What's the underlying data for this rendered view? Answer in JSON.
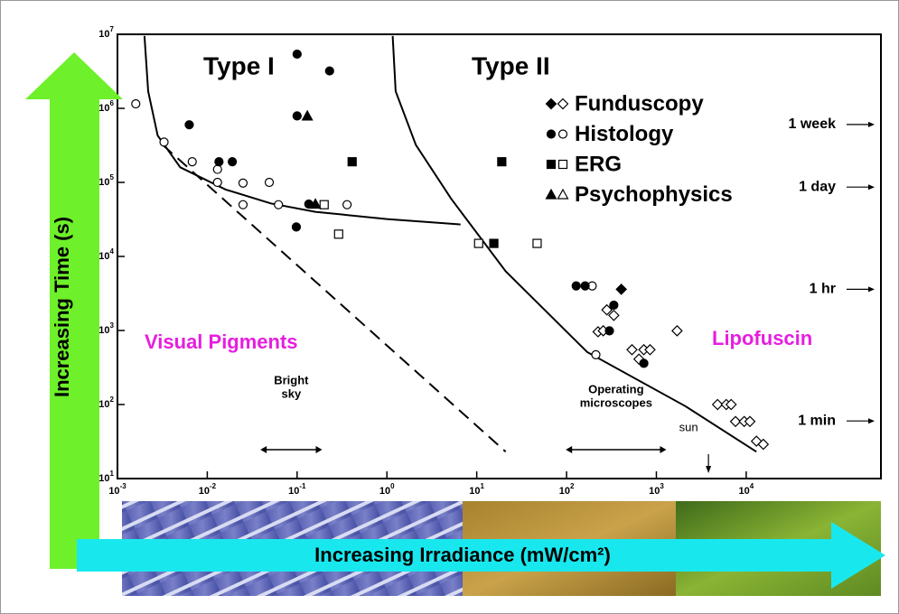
{
  "chart_data": {
    "type": "scatter",
    "xscale": "log",
    "yscale": "log",
    "xlim": [
      0.001,
      316228
    ],
    "ylim": [
      10,
      10000000
    ],
    "xticks": [
      {
        "value": 0.001,
        "label": "10",
        "exponent": "-3"
      },
      {
        "value": 0.01,
        "label": "10",
        "exponent": "-2"
      },
      {
        "value": 0.1,
        "label": "10",
        "exponent": "-1"
      },
      {
        "value": 1,
        "label": "10",
        "exponent": "0"
      },
      {
        "value": 10,
        "label": "10",
        "exponent": "1"
      },
      {
        "value": 100,
        "label": "10",
        "exponent": "2"
      },
      {
        "value": 1000,
        "label": "10",
        "exponent": "3"
      },
      {
        "value": 10000,
        "label": "10",
        "exponent": "4"
      }
    ],
    "yticks": [
      {
        "value": 10,
        "label": "10",
        "exponent": "1"
      },
      {
        "value": 100,
        "label": "10",
        "exponent": "2"
      },
      {
        "value": 1000,
        "label": "10",
        "exponent": "3"
      },
      {
        "value": 10000,
        "label": "10",
        "exponent": "4"
      },
      {
        "value": 100000,
        "label": "10",
        "exponent": "5"
      },
      {
        "value": 1000000,
        "label": "10",
        "exponent": "6"
      },
      {
        "value": 10000000,
        "label": "10",
        "exponent": "7"
      }
    ],
    "x_label": "Increasing Irradiance (mW/cm²)",
    "y_label": "Increasing Time (s)",
    "series": [
      {
        "name": "Funduscopy",
        "marker": "diamond",
        "color": "#000000",
        "filled": {
          "x": [
            407
          ],
          "values": [
            3600
          ]
        },
        "open": {
          "x": [
            281,
            336,
            224,
            256,
            535,
            725,
            850,
            640,
            1700,
            4800,
            6000,
            6800,
            7600,
            9500,
            11000,
            13000,
            15500
          ],
          "values": [
            1900,
            1600,
            960,
            990,
            550,
            550,
            550,
            410,
            990,
            100,
            100,
            100,
            59,
            59,
            59,
            32,
            29
          ]
        }
      },
      {
        "name": "Histology",
        "marker": "circle",
        "color": "#000000",
        "filled": {
          "x": [
            0.1,
            0.23,
            0.0063,
            0.0135,
            0.019,
            0.1,
            0.098,
            0.135,
            128,
            161,
            336,
            300,
            725
          ],
          "values": [
            5400000,
            3200000,
            600000,
            190000,
            190000,
            790000,
            25000,
            51000,
            4000,
            4000,
            2200,
            990,
            360
          ]
        },
        "open": {
          "x": [
            0.0016,
            0.0033,
            0.0068,
            0.013,
            0.013,
            0.025,
            0.049,
            0.025,
            0.062,
            0.36,
            193,
            212
          ],
          "values": [
            1150000,
            350000,
            190000,
            150000,
            100000,
            98000,
            100000,
            50000,
            50000,
            50000,
            4000,
            470
          ]
        }
      },
      {
        "name": "ERG",
        "marker": "square",
        "color": "#000000",
        "filled": {
          "x": [
            0.41,
            19,
            15.5
          ],
          "values": [
            190000,
            190000,
            15000
          ]
        },
        "open": {
          "x": [
            0.2,
            0.29,
            10.5,
            47
          ],
          "values": [
            50000,
            20000,
            15000,
            15000
          ]
        }
      },
      {
        "name": "Psychophysics",
        "marker": "triangle",
        "color": "#000000",
        "filled": {
          "x": [
            0.13,
            0.16
          ],
          "values": [
            790000,
            51000
          ]
        },
        "open": {
          "x": [],
          "values": []
        }
      }
    ],
    "curves": [
      {
        "name": "Type I",
        "dashed": false,
        "x": [
          0.002,
          0.0022,
          0.0028,
          0.005,
          0.016,
          0.051,
          0.16,
          1,
          6.6
        ],
        "values": [
          9500000,
          1700000,
          430000,
          160000,
          80000,
          52000,
          40000,
          32000,
          27000
        ]
      },
      {
        "name": "Type II",
        "dashed": false,
        "x": [
          1.16,
          1.25,
          2.1,
          5.2,
          21,
          170,
          2100,
          13000
        ],
        "values": [
          9500000,
          1700000,
          320000,
          60000,
          6300,
          510,
          95,
          23
        ]
      },
      {
        "dashed": true,
        "x": [
          0.0032,
          21
        ],
        "values": [
          320000,
          23
        ]
      }
    ],
    "time_marks": [
      {
        "value": 604800,
        "label": "1 week"
      },
      {
        "value": 86400,
        "label": "1 day"
      },
      {
        "value": 3600,
        "label": "1 hr"
      },
      {
        "value": 60,
        "label": "1 min"
      }
    ],
    "regions": [
      "Visual Pigments",
      "Lipofuscin"
    ],
    "sources": [
      {
        "label": [
          "Bright",
          "sky"
        ],
        "range": [
          0.039,
          0.19
        ]
      },
      {
        "label": [
          "Operating",
          "microscopes"
        ],
        "range": [
          98,
          1290
        ]
      },
      {
        "label": [
          "sun"
        ],
        "at": 3800
      }
    ]
  }
}
